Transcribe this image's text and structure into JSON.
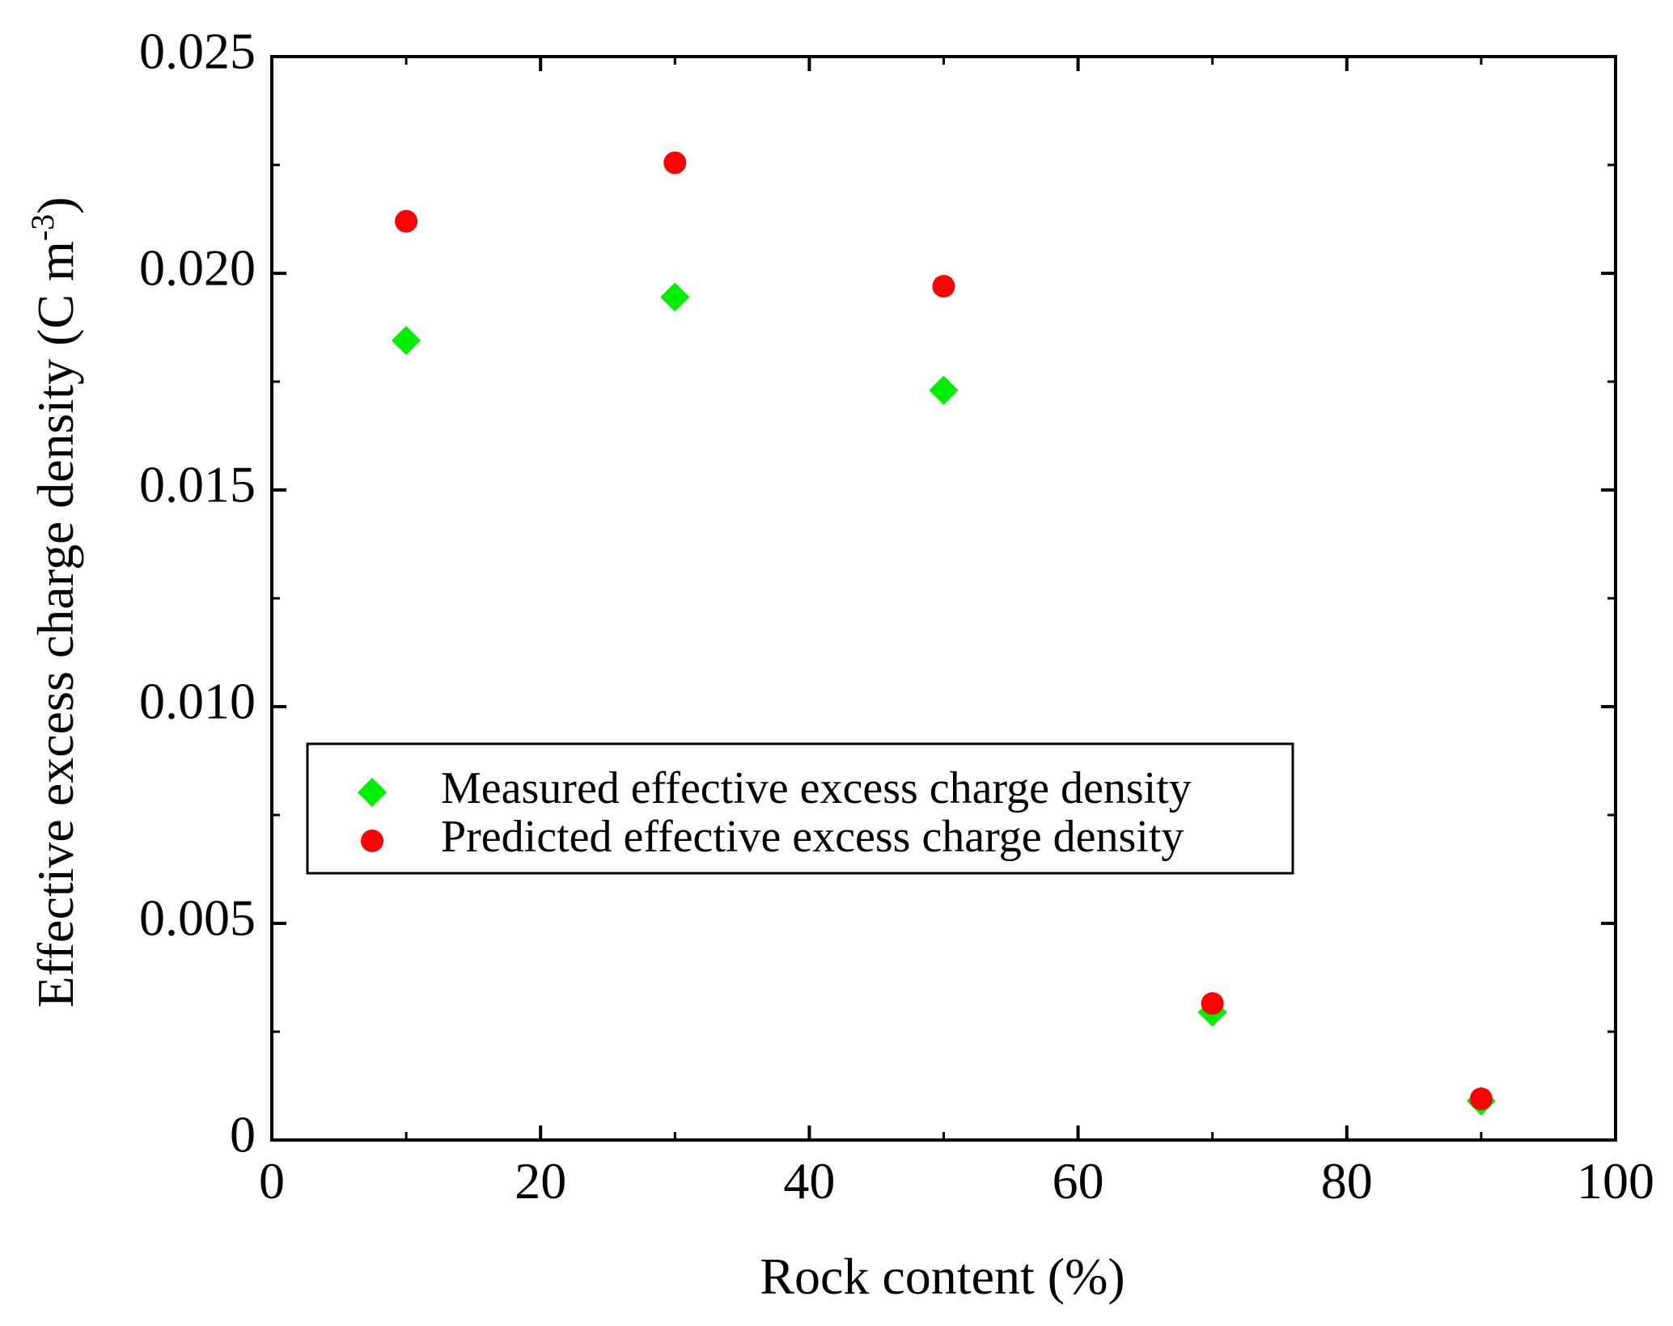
{
  "chart_data": {
    "type": "scatter",
    "title": "",
    "xlabel": "Rock content (%)",
    "ylabel_main": "Effective excess charge density (C m",
    "ylabel_superscript": "-3",
    "ylabel_close": ")",
    "xlim": [
      0,
      100
    ],
    "ylim": [
      0,
      0.025
    ],
    "grid": false,
    "legend_position": "center-left",
    "x_ticks": [
      0,
      20,
      40,
      60,
      80,
      100
    ],
    "x_tick_labels": [
      "0",
      "20",
      "40",
      "60",
      "80",
      "100"
    ],
    "y_ticks": [
      0,
      0.005,
      0.01,
      0.015,
      0.02,
      0.025
    ],
    "y_tick_labels": [
      "0",
      "0.005",
      "0.010",
      "0.015",
      "0.020",
      "0.025"
    ],
    "series": [
      {
        "name": "Measured effective excess charge density",
        "marker": "diamond",
        "color": "#00ee00",
        "x": [
          10,
          30,
          50,
          70,
          90
        ],
        "y": [
          0.01845,
          0.01945,
          0.0173,
          0.00295,
          0.0009
        ]
      },
      {
        "name": "Predicted effective excess charge density",
        "marker": "circle",
        "color": "#ff0000",
        "x": [
          10,
          30,
          50,
          70,
          90
        ],
        "y": [
          0.0212,
          0.02255,
          0.0197,
          0.00315,
          0.00095
        ]
      }
    ]
  }
}
